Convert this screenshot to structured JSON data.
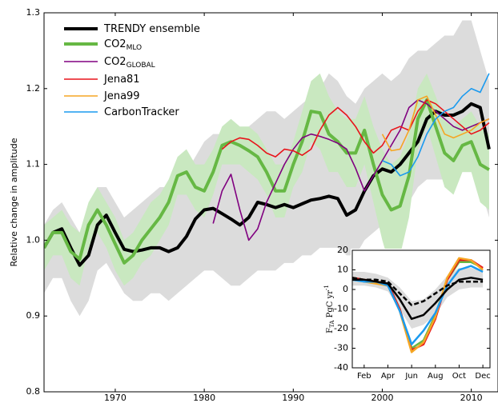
{
  "chart_data": [
    {
      "type": "line",
      "ylabel": "Relative change in amplitude",
      "legend": "upper left",
      "x": [
        1962,
        1963,
        1964,
        1965,
        1966,
        1967,
        1968,
        1969,
        1970,
        1971,
        1972,
        1973,
        1974,
        1975,
        1976,
        1977,
        1978,
        1979,
        1980,
        1981,
        1982,
        1983,
        1984,
        1985,
        1986,
        1987,
        1988,
        1989,
        1990,
        1991,
        1992,
        1993,
        1994,
        1995,
        1996,
        1997,
        1998,
        1999,
        2000,
        2001,
        2002,
        2003,
        2004,
        2005,
        2006,
        2007,
        2008,
        2009,
        2010,
        2011,
        2012
      ],
      "xlim": [
        1962,
        2013
      ],
      "xticks": [
        1970,
        1980,
        1990,
        2000,
        2010
      ],
      "ylim": [
        0.8,
        1.3
      ],
      "yticks": [
        0.8,
        0.9,
        {
          "value": 1,
          "label": "1.0"
        },
        1.1,
        1.2,
        1.3
      ],
      "bands": [
        {
          "color": "#dcdcdc",
          "upper": [
            1.02,
            1.04,
            1.05,
            1.03,
            1.01,
            1.03,
            1.07,
            1.07,
            1.05,
            1.03,
            1.04,
            1.05,
            1.06,
            1.07,
            1.07,
            1.08,
            1.09,
            1.11,
            1.13,
            1.14,
            1.14,
            1.14,
            1.14,
            1.15,
            1.16,
            1.17,
            1.17,
            1.16,
            1.17,
            1.18,
            1.19,
            1.2,
            1.22,
            1.21,
            1.19,
            1.18,
            1.2,
            1.21,
            1.22,
            1.21,
            1.22,
            1.24,
            1.25,
            1.25,
            1.26,
            1.27,
            1.27,
            1.29,
            1.29,
            1.25,
            1.21
          ],
          "lower": [
            0.93,
            0.95,
            0.95,
            0.92,
            0.9,
            0.92,
            0.96,
            0.97,
            0.95,
            0.93,
            0.92,
            0.92,
            0.93,
            0.93,
            0.92,
            0.93,
            0.94,
            0.95,
            0.96,
            0.96,
            0.95,
            0.94,
            0.94,
            0.95,
            0.96,
            0.96,
            0.96,
            0.97,
            0.97,
            0.98,
            0.98,
            0.99,
            0.99,
            0.99,
            0.98,
            0.98,
            1.0,
            1.01,
            1.02,
            1.03,
            1.03,
            1.05,
            1.07,
            1.08,
            1.08,
            1.08,
            1.08,
            1.09,
            1.09,
            1.07,
            1.03
          ]
        },
        {
          "color": "#c9e8c0",
          "upper": [
            1.02,
            1.03,
            1.04,
            1.02,
            1.01,
            1.05,
            1.07,
            1.05,
            1.03,
            1.0,
            1.01,
            1.03,
            1.05,
            1.06,
            1.08,
            1.11,
            1.12,
            1.1,
            1.1,
            1.12,
            1.15,
            1.16,
            1.15,
            1.15,
            1.14,
            1.12,
            1.1,
            1.1,
            1.13,
            1.17,
            1.21,
            1.22,
            1.19,
            1.17,
            1.16,
            1.16,
            1.19,
            1.15,
            1.12,
            1.1,
            1.11,
            1.14,
            1.2,
            1.22,
            1.19,
            1.16,
            1.15,
            1.16,
            1.17,
            1.15,
            1.14
          ],
          "lower": [
            0.96,
            0.98,
            0.98,
            0.95,
            0.94,
            0.99,
            1.01,
            0.99,
            0.96,
            0.94,
            0.95,
            0.97,
            0.98,
            1.0,
            1.02,
            1.06,
            1.06,
            1.04,
            1.03,
            1.06,
            1.1,
            1.1,
            1.1,
            1.09,
            1.08,
            1.06,
            1.03,
            1.03,
            1.07,
            1.09,
            1.13,
            1.12,
            1.09,
            1.09,
            1.07,
            1.07,
            1.1,
            1.05,
            1.0,
            0.96,
            0.98,
            1.03,
            1.12,
            1.15,
            1.11,
            1.07,
            1.06,
            1.09,
            1.09,
            1.05,
            1.04
          ]
        }
      ],
      "series": [
        {
          "name": "TRENDY ensemble",
          "color": "#000000",
          "linewidth": 4,
          "values": [
            0.99,
            1.01,
            1.015,
            0.99,
            0.967,
            0.98,
            1.02,
            1.033,
            1.01,
            0.988,
            0.985,
            0.987,
            0.99,
            0.99,
            0.985,
            0.99,
            1.005,
            1.028,
            1.04,
            1.042,
            1.035,
            1.028,
            1.02,
            1.03,
            1.05,
            1.047,
            1.043,
            1.047,
            1.043,
            1.048,
            1.053,
            1.055,
            1.058,
            1.055,
            1.033,
            1.04,
            1.065,
            1.085,
            1.094,
            1.09,
            1.1,
            1.115,
            1.13,
            1.16,
            1.17,
            1.165,
            1.165,
            1.17,
            1.18,
            1.175,
            1.12
          ]
        },
        {
          "name": "CO2",
          "name_sub": "MLO",
          "color": "#66b844",
          "linewidth": 4,
          "values": [
            0.99,
            1.01,
            1.01,
            0.985,
            0.975,
            1.02,
            1.04,
            1.02,
            0.995,
            0.97,
            0.98,
            1.0,
            1.015,
            1.03,
            1.05,
            1.085,
            1.09,
            1.07,
            1.065,
            1.09,
            1.125,
            1.13,
            1.125,
            1.118,
            1.11,
            1.09,
            1.065,
            1.065,
            1.1,
            1.13,
            1.17,
            1.168,
            1.14,
            1.13,
            1.115,
            1.115,
            1.145,
            1.1,
            1.06,
            1.04,
            1.045,
            1.085,
            1.16,
            1.185,
            1.15,
            1.115,
            1.105,
            1.125,
            1.13,
            1.1,
            1.093
          ]
        },
        {
          "name": "CO2",
          "name_sub": "GLOBAL",
          "color": "#800080",
          "linewidth": 1.6,
          "values": [
            null,
            null,
            null,
            null,
            null,
            null,
            null,
            null,
            null,
            null,
            null,
            null,
            null,
            null,
            null,
            null,
            null,
            null,
            null,
            1.022,
            1.065,
            1.087,
            1.04,
            1.0,
            1.015,
            1.05,
            1.075,
            1.1,
            1.12,
            1.135,
            1.14,
            1.137,
            1.133,
            1.128,
            1.12,
            1.095,
            1.065,
            1.085,
            1.105,
            1.125,
            1.145,
            1.175,
            1.185,
            1.18,
            1.17,
            1.16,
            1.15,
            1.145,
            1.15,
            1.155,
            1.16
          ]
        },
        {
          "name": "Jena81",
          "color": "#e8141b",
          "linewidth": 1.6,
          "values": [
            null,
            null,
            null,
            null,
            null,
            null,
            null,
            null,
            null,
            null,
            null,
            null,
            null,
            null,
            null,
            null,
            null,
            null,
            null,
            null,
            1.12,
            1.13,
            1.135,
            1.133,
            1.125,
            1.115,
            1.11,
            1.12,
            1.118,
            1.112,
            1.12,
            1.145,
            1.165,
            1.175,
            1.165,
            1.15,
            1.13,
            1.115,
            1.125,
            1.145,
            1.15,
            1.145,
            1.17,
            1.185,
            1.18,
            1.17,
            1.16,
            1.15,
            1.14,
            1.145,
            1.155
          ]
        },
        {
          "name": "Jena99",
          "color": "#f5a623",
          "linewidth": 1.6,
          "values": [
            null,
            null,
            null,
            null,
            null,
            null,
            null,
            null,
            null,
            null,
            null,
            null,
            null,
            null,
            null,
            null,
            null,
            null,
            null,
            null,
            null,
            null,
            null,
            null,
            null,
            null,
            null,
            null,
            null,
            null,
            null,
            null,
            null,
            null,
            null,
            null,
            null,
            null,
            1.14,
            1.118,
            1.12,
            1.145,
            1.185,
            1.19,
            1.165,
            1.14,
            1.135,
            1.14,
            1.145,
            1.155,
            1.16
          ]
        },
        {
          "name": "CarbonTracker",
          "color": "#1a9aef",
          "linewidth": 1.6,
          "values": [
            null,
            null,
            null,
            null,
            null,
            null,
            null,
            null,
            null,
            null,
            null,
            null,
            null,
            null,
            null,
            null,
            null,
            null,
            null,
            null,
            null,
            null,
            null,
            null,
            null,
            null,
            null,
            null,
            null,
            null,
            null,
            null,
            null,
            null,
            null,
            null,
            null,
            null,
            1.105,
            1.1,
            1.085,
            1.09,
            1.11,
            1.14,
            1.16,
            1.17,
            1.175,
            1.19,
            1.2,
            1.195,
            1.22
          ]
        }
      ]
    },
    {
      "type": "line",
      "ylabel": "F",
      "ylabel_sub": "TA",
      "ylabel_rest": " PgC yr",
      "ylabel_sup": "-1",
      "categories": [
        null,
        "Feb",
        null,
        "Apr",
        null,
        "Jun",
        null,
        "Aug",
        null,
        "Oct",
        null,
        "Dec"
      ],
      "ylim": [
        -40,
        20
      ],
      "yticks": [
        -40,
        -30,
        -20,
        -10,
        0,
        10,
        20
      ],
      "bands": [
        {
          "color": "#dcdcdc",
          "upper": [
            9,
            9,
            8,
            6,
            1,
            -6,
            -5,
            0,
            7,
            11,
            11,
            9
          ],
          "lower": [
            2,
            2,
            1,
            -1,
            -10,
            -20,
            -18,
            -13,
            -4,
            0,
            1,
            1
          ]
        }
      ],
      "series": [
        {
          "color": "#66b844",
          "linewidth": 2.5,
          "values": [
            6,
            5,
            4,
            3,
            -10,
            -30,
            -26,
            -13,
            5,
            14,
            14,
            11
          ]
        },
        {
          "color": "#e8141b",
          "linewidth": 2.5,
          "values": [
            6,
            5,
            4,
            3,
            -10,
            -31,
            -28,
            -15,
            5,
            15,
            15,
            11
          ]
        },
        {
          "color": "#f5a623",
          "linewidth": 2.5,
          "values": [
            5,
            4,
            3,
            2,
            -11,
            -32,
            -27,
            -14,
            6,
            16,
            15,
            10
          ]
        },
        {
          "color": "#1a9aef",
          "linewidth": 2.5,
          "values": [
            5,
            4,
            4,
            2,
            -11,
            -28,
            -21,
            -12,
            2,
            10,
            12,
            9
          ]
        },
        {
          "color": "#000000",
          "linewidth": 2.5,
          "values": [
            5,
            5,
            4,
            3,
            -5,
            -15,
            -13,
            -7,
            0,
            5,
            6,
            5
          ]
        },
        {
          "color": "#000000",
          "linewidth": 2.5,
          "dashed": true,
          "values": [
            6,
            5,
            5,
            4,
            -2,
            -8,
            -6,
            -2,
            2,
            4,
            4,
            4
          ]
        }
      ]
    }
  ]
}
